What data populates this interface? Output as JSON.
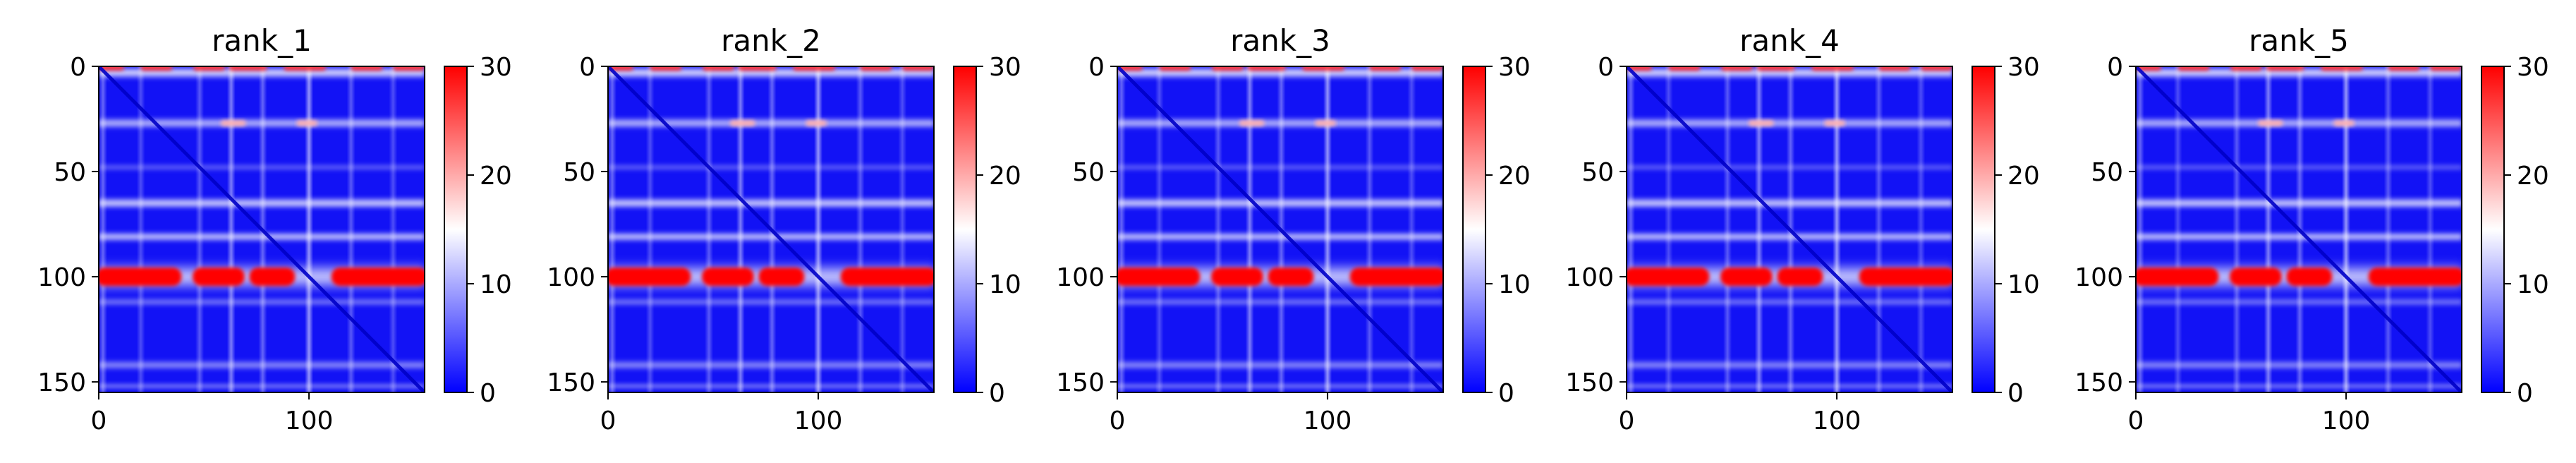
{
  "colors": {
    "low": "#0000ff",
    "mid": "#ffffff",
    "high": "#ff0000"
  },
  "chart_data": [
    {
      "type": "heatmap",
      "title": "rank_1",
      "xticks": [
        "0",
        "100"
      ],
      "yticks": [
        "0",
        "50",
        "100",
        "150"
      ],
      "xlim": [
        0,
        155
      ],
      "ylim": [
        155,
        0
      ],
      "colorbar": {
        "range": [
          0,
          30
        ],
        "ticks": [
          "0",
          "10",
          "20",
          "30"
        ]
      }
    },
    {
      "type": "heatmap",
      "title": "rank_2",
      "xticks": [
        "0",
        "100"
      ],
      "yticks": [
        "0",
        "50",
        "100",
        "150"
      ],
      "xlim": [
        0,
        155
      ],
      "ylim": [
        155,
        0
      ],
      "colorbar": {
        "range": [
          0,
          30
        ],
        "ticks": [
          "0",
          "10",
          "20",
          "30"
        ]
      }
    },
    {
      "type": "heatmap",
      "title": "rank_3",
      "xticks": [
        "0",
        "100"
      ],
      "yticks": [
        "0",
        "50",
        "100",
        "150"
      ],
      "xlim": [
        0,
        155
      ],
      "ylim": [
        155,
        0
      ],
      "colorbar": {
        "range": [
          0,
          30
        ],
        "ticks": [
          "0",
          "10",
          "20",
          "30"
        ]
      }
    },
    {
      "type": "heatmap",
      "title": "rank_4",
      "xticks": [
        "0",
        "100"
      ],
      "yticks": [
        "0",
        "50",
        "100",
        "150"
      ],
      "xlim": [
        0,
        155
      ],
      "ylim": [
        155,
        0
      ],
      "colorbar": {
        "range": [
          0,
          30
        ],
        "ticks": [
          "0",
          "10",
          "20",
          "30"
        ]
      }
    },
    {
      "type": "heatmap",
      "title": "rank_5",
      "xticks": [
        "0",
        "100"
      ],
      "yticks": [
        "0",
        "50",
        "100",
        "150"
      ],
      "xlim": [
        0,
        155
      ],
      "ylim": [
        155,
        0
      ],
      "colorbar": {
        "range": [
          0,
          30
        ],
        "ticks": [
          "0",
          "10",
          "20",
          "30"
        ]
      }
    }
  ]
}
